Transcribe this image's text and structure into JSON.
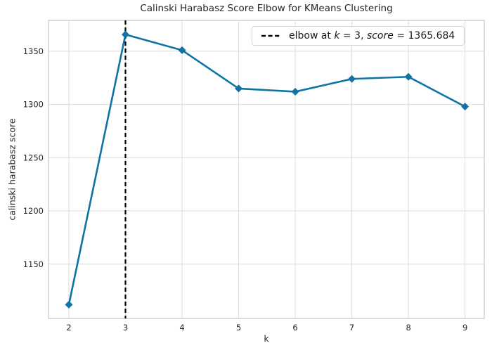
{
  "title": "Calinski Harabasz Score Elbow for KMeans Clustering",
  "chart_data": {
    "type": "line",
    "title": "Calinski Harabasz Score Elbow for KMeans Clustering",
    "xlabel": "k",
    "ylabel": "calinski harabasz score",
    "x": [
      2,
      3,
      4,
      5,
      6,
      7,
      8,
      9
    ],
    "series": [
      {
        "name": "calinski harabasz score",
        "values": [
          1112,
          1365.684,
          1351,
          1315,
          1312,
          1324,
          1326,
          1298
        ]
      }
    ],
    "elbow": {
      "k": 3,
      "score": 1365.684
    },
    "xticks": [
      2,
      3,
      4,
      5,
      6,
      7,
      8,
      9
    ],
    "yticks": [
      1150,
      1200,
      1250,
      1300,
      1350
    ],
    "xlim": [
      1.64,
      9.34
    ],
    "ylim": [
      1099,
      1379
    ],
    "grid": true,
    "legend_position": "upper right",
    "legend_parts": [
      {
        "text": "elbow at ",
        "italic": false
      },
      {
        "text": "k",
        "italic": true
      },
      {
        "text": " = 3, ",
        "italic": false
      },
      {
        "text": "score",
        "italic": true
      },
      {
        "text": " = 1365.684",
        "italic": false
      }
    ],
    "marker": "diamond",
    "line_style": {
      "solid_width": 2.6,
      "elbow_dash": "6 4",
      "elbow_width": 2.2
    },
    "colors": {
      "line": "#0f73a6",
      "marker": "#0f73a6",
      "elbow_line": "#000000",
      "grid": "#dcdcdc",
      "spine": "#c6c6c6",
      "text": "#262626"
    }
  }
}
